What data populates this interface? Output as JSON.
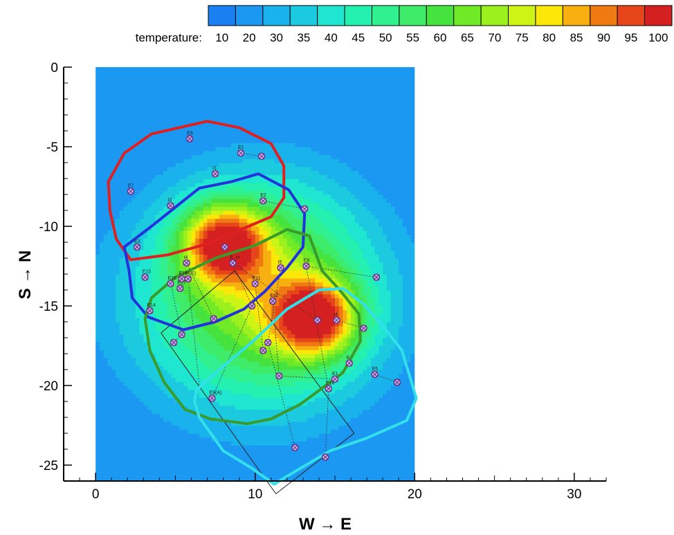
{
  "chart_data": {
    "type": "heatmap",
    "title": "",
    "xlabel": "W → E",
    "ylabel": "S → N",
    "xlim": [
      -2,
      32
    ],
    "ylim": [
      -26,
      0
    ],
    "x_ticks": [
      0,
      10,
      20,
      30
    ],
    "y_ticks": [
      0,
      -5,
      -10,
      -15,
      -20,
      -25
    ],
    "grid": false,
    "colorbar": {
      "label": "temperature:",
      "levels": [
        10,
        20,
        30,
        35,
        40,
        45,
        50,
        55,
        60,
        65,
        70,
        75,
        80,
        85,
        90,
        95,
        100
      ],
      "colors": [
        "#1a7ff0",
        "#1a98f2",
        "#1ab2ec",
        "#1ccae0",
        "#1ee6d0",
        "#24f0b0",
        "#30f090",
        "#3eec6a",
        "#46e23e",
        "#70ea26",
        "#9cf01e",
        "#ccf414",
        "#fce808",
        "#f8b010",
        "#f07a12",
        "#e6461a",
        "#d42020"
      ],
      "placement": "top-right"
    },
    "field": {
      "background": 20,
      "extent_x": [
        0,
        20
      ],
      "extent_y": [
        -26,
        0
      ],
      "hotspots": [
        {
          "x": 8,
          "y": -11,
          "peak": 100
        },
        {
          "x": 13.8,
          "y": -15.8,
          "peak": 100
        }
      ]
    },
    "zones": [
      {
        "name": "red",
        "color": "#e02020",
        "points": [
          [
            0.8,
            -7.2
          ],
          [
            1.8,
            -5.4
          ],
          [
            3.5,
            -4.2
          ],
          [
            7,
            -3.4
          ],
          [
            9,
            -3.8
          ],
          [
            11,
            -4.8
          ],
          [
            11.8,
            -6.2
          ],
          [
            11.8,
            -8.2
          ],
          [
            11,
            -9.4
          ],
          [
            7,
            -11.1
          ],
          [
            4.5,
            -11.8
          ],
          [
            2.2,
            -12.1
          ],
          [
            1.3,
            -10.8
          ],
          [
            0.9,
            -9
          ]
        ]
      },
      {
        "name": "blue",
        "color": "#2233dd",
        "points": [
          [
            1.8,
            -11.3
          ],
          [
            3.5,
            -10
          ],
          [
            6.5,
            -7.6
          ],
          [
            8.5,
            -7.2
          ],
          [
            10.2,
            -6.7
          ],
          [
            12.1,
            -7.7
          ],
          [
            13.1,
            -9.2
          ],
          [
            13,
            -11.3
          ],
          [
            12,
            -12.6
          ],
          [
            10.6,
            -14.1
          ],
          [
            9.3,
            -15.2
          ],
          [
            7.5,
            -16
          ],
          [
            5.5,
            -16.5
          ],
          [
            3.3,
            -15.7
          ],
          [
            2.3,
            -14.5
          ],
          [
            2.1,
            -12.8
          ]
        ]
      },
      {
        "name": "green",
        "color": "#3a9a2a",
        "points": [
          [
            3.1,
            -15.8
          ],
          [
            3.5,
            -14.5
          ],
          [
            5,
            -13.2
          ],
          [
            7.5,
            -12
          ],
          [
            10,
            -11.2
          ],
          [
            12,
            -10.2
          ],
          [
            13.4,
            -10.6
          ],
          [
            14.2,
            -12.8
          ],
          [
            15.3,
            -14
          ],
          [
            16.5,
            -15.5
          ],
          [
            16.6,
            -17.2
          ],
          [
            15.5,
            -19.2
          ],
          [
            12.8,
            -21.2
          ],
          [
            11,
            -22.1
          ],
          [
            9.5,
            -22.4
          ],
          [
            7.2,
            -22.1
          ],
          [
            5.6,
            -21.5
          ],
          [
            4.3,
            -19.8
          ],
          [
            3.4,
            -17.8
          ]
        ]
      },
      {
        "name": "cyan",
        "color": "#33e0ea",
        "points": [
          [
            6.3,
            -20.3
          ],
          [
            8,
            -18.8
          ],
          [
            10,
            -17.1
          ],
          [
            12,
            -15.2
          ],
          [
            14,
            -14
          ],
          [
            15.5,
            -13.9
          ],
          [
            16.7,
            -14.8
          ],
          [
            17.8,
            -16
          ],
          [
            19.2,
            -17.8
          ],
          [
            20.1,
            -20.8
          ],
          [
            19.5,
            -22.2
          ],
          [
            17,
            -23.3
          ],
          [
            14.7,
            -24.1
          ],
          [
            12,
            -25.7
          ],
          [
            11.2,
            -26.2
          ],
          [
            9.8,
            -25.2
          ],
          [
            8,
            -24.1
          ],
          [
            6.5,
            -22
          ],
          [
            6.2,
            -21
          ]
        ]
      }
    ],
    "outline": {
      "color": "#222222",
      "points": [
        [
          4.1,
          -16.7
        ],
        [
          8.7,
          -12.8
        ],
        [
          16.2,
          -23
        ],
        [
          11.3,
          -26.8
        ]
      ]
    },
    "wells": [
      {
        "label": "E6",
        "x": 5.9,
        "y": -4.5
      },
      {
        "label": "E1",
        "x": 9.1,
        "y": -5.4
      },
      {
        "label": "",
        "x": 10.4,
        "y": -5.6
      },
      {
        "label": "I1",
        "x": 7.5,
        "y": -6.7
      },
      {
        "label": "E7",
        "x": 2.2,
        "y": -7.8
      },
      {
        "label": "I3",
        "x": 4.7,
        "y": -8.7
      },
      {
        "label": "E2",
        "x": 10.5,
        "y": -8.4
      },
      {
        "label": "",
        "x": 13.1,
        "y": -8.9
      },
      {
        "label": "E3",
        "x": 2.6,
        "y": -11.3
      },
      {
        "label": "",
        "x": 8.1,
        "y": -11.3
      },
      {
        "label": "E_H",
        "x": 8.6,
        "y": -12.3
      },
      {
        "label": "I4",
        "x": 5.7,
        "y": -12.3
      },
      {
        "label": "I5",
        "x": 11.6,
        "y": -12.6
      },
      {
        "label": "E8",
        "x": 13.2,
        "y": -12.5
      },
      {
        "label": "",
        "x": 17.6,
        "y": -13.2
      },
      {
        "label": "E15",
        "x": 3.1,
        "y": -13.2
      },
      {
        "label": "E16",
        "x": 4.7,
        "y": -13.6
      },
      {
        "label": "I4(E)",
        "x": 5.8,
        "y": -13.3
      },
      {
        "label": "E17",
        "x": 5.3,
        "y": -13.9
      },
      {
        "label": "E18",
        "x": 5.4,
        "y": -13.3
      },
      {
        "label": "E11",
        "x": 10,
        "y": -13.6
      },
      {
        "label": "E14",
        "x": 3.4,
        "y": -15.3
      },
      {
        "label": "",
        "x": 9.8,
        "y": -15
      },
      {
        "label": "E12",
        "x": 11.1,
        "y": -14.7
      },
      {
        "label": "",
        "x": 7.4,
        "y": -15.8
      },
      {
        "label": "",
        "x": 13.9,
        "y": -15.9
      },
      {
        "label": "I4",
        "x": 15.1,
        "y": -15.9
      },
      {
        "label": "",
        "x": 16.8,
        "y": -16.4
      },
      {
        "label": "",
        "x": 4.9,
        "y": -17.3
      },
      {
        "label": "",
        "x": 5.4,
        "y": -16.8
      },
      {
        "label": "",
        "x": 10.8,
        "y": -17.3
      },
      {
        "label": "",
        "x": 10.5,
        "y": -17.8
      },
      {
        "label": "E",
        "x": 15.9,
        "y": -18.6
      },
      {
        "label": "",
        "x": 11.5,
        "y": -19.4
      },
      {
        "label": "E1",
        "x": 15,
        "y": -19.6
      },
      {
        "label": "E5",
        "x": 17.5,
        "y": -19.3
      },
      {
        "label": "",
        "x": 18.9,
        "y": -19.8
      },
      {
        "label": "E14",
        "x": 14.6,
        "y": -20.2
      },
      {
        "label": "E9(A)",
        "x": 7.3,
        "y": -20.8
      },
      {
        "label": "",
        "x": 12.5,
        "y": -23.9
      },
      {
        "label": "",
        "x": 14.4,
        "y": -24.5
      }
    ],
    "links": [
      [
        9.1,
        -5.4,
        10.4,
        -5.6
      ],
      [
        10.5,
        -8.4,
        13.1,
        -8.9
      ],
      [
        13.2,
        -12.5,
        17.6,
        -13.2
      ],
      [
        5.7,
        -12.3,
        7.4,
        -15.8
      ],
      [
        8.6,
        -12.3,
        9.8,
        -15
      ],
      [
        10,
        -13.6,
        10.5,
        -17.8
      ],
      [
        11.1,
        -14.7,
        11.5,
        -19.4
      ],
      [
        15.1,
        -15.9,
        16.8,
        -16.4
      ],
      [
        15.9,
        -18.6,
        15,
        -19.6
      ],
      [
        17.5,
        -19.3,
        18.9,
        -19.8
      ],
      [
        5.4,
        -16.8,
        4.9,
        -17.3
      ],
      [
        11.5,
        -19.4,
        15,
        -19.6
      ],
      [
        14.6,
        -20.2,
        14.4,
        -24.5
      ],
      [
        10.8,
        -17.3,
        12.5,
        -23.9
      ],
      [
        9.8,
        -15,
        7.3,
        -20.8
      ],
      [
        8.6,
        -12.3,
        13.9,
        -15.9
      ],
      [
        11.6,
        -12.6,
        10.8,
        -17.3
      ],
      [
        5.8,
        -13.3,
        6.5,
        -20
      ],
      [
        4.7,
        -13.6,
        5.4,
        -16.8
      ],
      [
        13.2,
        -12.5,
        14.6,
        -20.2
      ]
    ]
  }
}
